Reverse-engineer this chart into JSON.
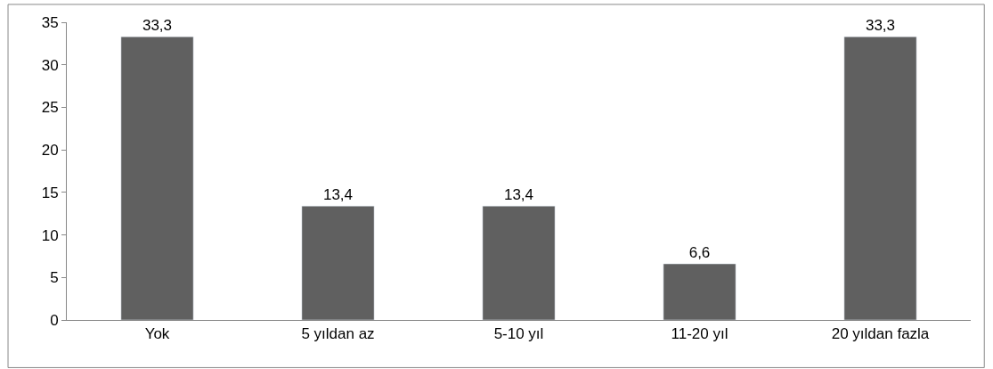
{
  "chart_data": {
    "type": "bar",
    "categories": [
      "Yok",
      "5 yıldan az",
      "5-10 yıl",
      "11-20 yıl",
      "20 yıldan fazla"
    ],
    "values": [
      33.3,
      13.4,
      13.4,
      6.6,
      33.3
    ],
    "value_labels": [
      "33,3",
      "13,4",
      "13,4",
      "6,6",
      "33,3"
    ],
    "color": "#606060",
    "ylim": [
      0,
      35
    ],
    "yticks": [
      0,
      5,
      10,
      15,
      20,
      25,
      30,
      35
    ],
    "legend": false
  }
}
